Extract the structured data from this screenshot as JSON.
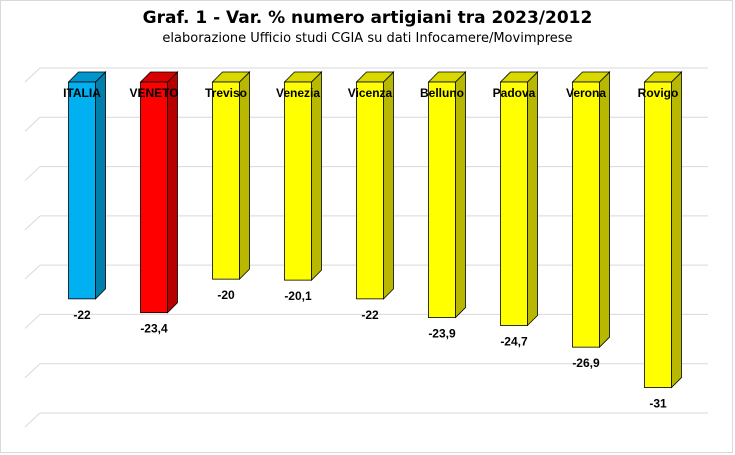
{
  "chart_data": {
    "type": "bar",
    "title": "Graf. 1 - Var. % numero artigiani tra 2023/2012",
    "subtitle": "elaborazione Ufficio studi CGIA su dati Infocamere/Movimprese",
    "categories": [
      "ITALIA",
      "VENETO",
      "Treviso",
      "Venezia",
      "Vicenza",
      "Belluno",
      "Padova",
      "Verona",
      "Rovigo"
    ],
    "values": [
      -22,
      -23.4,
      -20,
      -20.1,
      -22,
      -23.9,
      -24.7,
      -26.9,
      -31
    ],
    "value_labels": [
      "-22",
      "-23,4",
      "-20",
      "-20,1",
      "-22",
      "-23,9",
      "-24,7",
      "-26,9",
      "-31"
    ],
    "colors": {
      "ITALIA": "#00B0F0",
      "VENETO": "#FF0000",
      "default": "#FFFF00"
    },
    "ylim": [
      -35,
      0
    ],
    "grid": true,
    "style": "3d-bar",
    "xlabel": "",
    "ylabel": ""
  }
}
